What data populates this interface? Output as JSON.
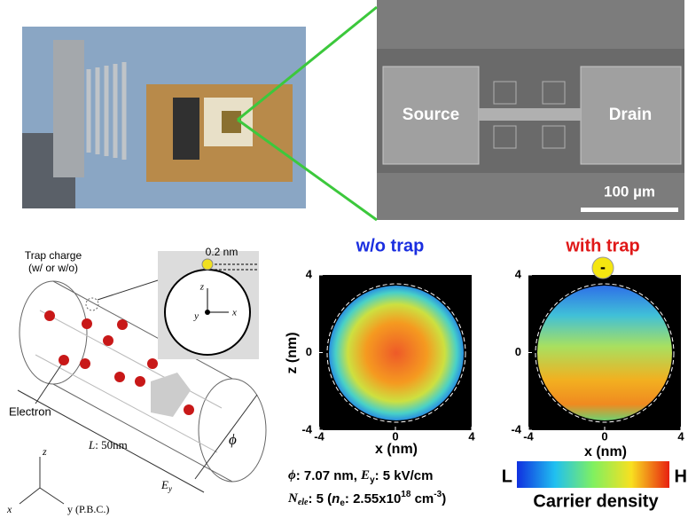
{
  "chip_image": {
    "source_label": "Source",
    "drain_label": "Drain",
    "scale_bar": "100 µm"
  },
  "schematic": {
    "trap_label": "Trap charge",
    "trap_note": "(w/ or w/o)",
    "gap_label": "0.2 nm",
    "inset_z": "z",
    "inset_y": "y",
    "inset_x": "x",
    "electron_label": "Electron",
    "length_symbol": "L",
    "length_value": ": 50nm",
    "diameter_symbol": "ϕ",
    "field_symbol": "E",
    "field_sub": "y",
    "axis_z": "z",
    "axis_x": "x",
    "axis_y": "y (P.B.C.)"
  },
  "panels": [
    {
      "title": "w/o trap",
      "xlabel": "x (nm)",
      "ylabel": "z (nm)",
      "xticks": [
        -4,
        0,
        4
      ],
      "yticks": [
        -4,
        0,
        4
      ],
      "xlim": [
        -4,
        4
      ],
      "ylim": [
        -4,
        4
      ]
    },
    {
      "title": "with trap",
      "charge_sign": "-",
      "xlabel": "x (nm)",
      "xticks": [
        -4,
        0,
        4
      ],
      "yticks": [
        -4,
        0,
        4
      ],
      "xlim": [
        -4,
        4
      ],
      "ylim": [
        -4,
        4
      ]
    }
  ],
  "caption": {
    "line1": [
      "ϕ",
      ": 7.07 nm, ",
      "E",
      "y",
      ": 5 kV/cm"
    ],
    "line2": [
      "N",
      "ele",
      ": 5 (",
      "n",
      "e",
      ": 2.55x10",
      "18",
      " cm",
      "-3",
      ")"
    ]
  },
  "colorbar": {
    "low": "L",
    "high": "H",
    "label": "Carrier density"
  }
}
